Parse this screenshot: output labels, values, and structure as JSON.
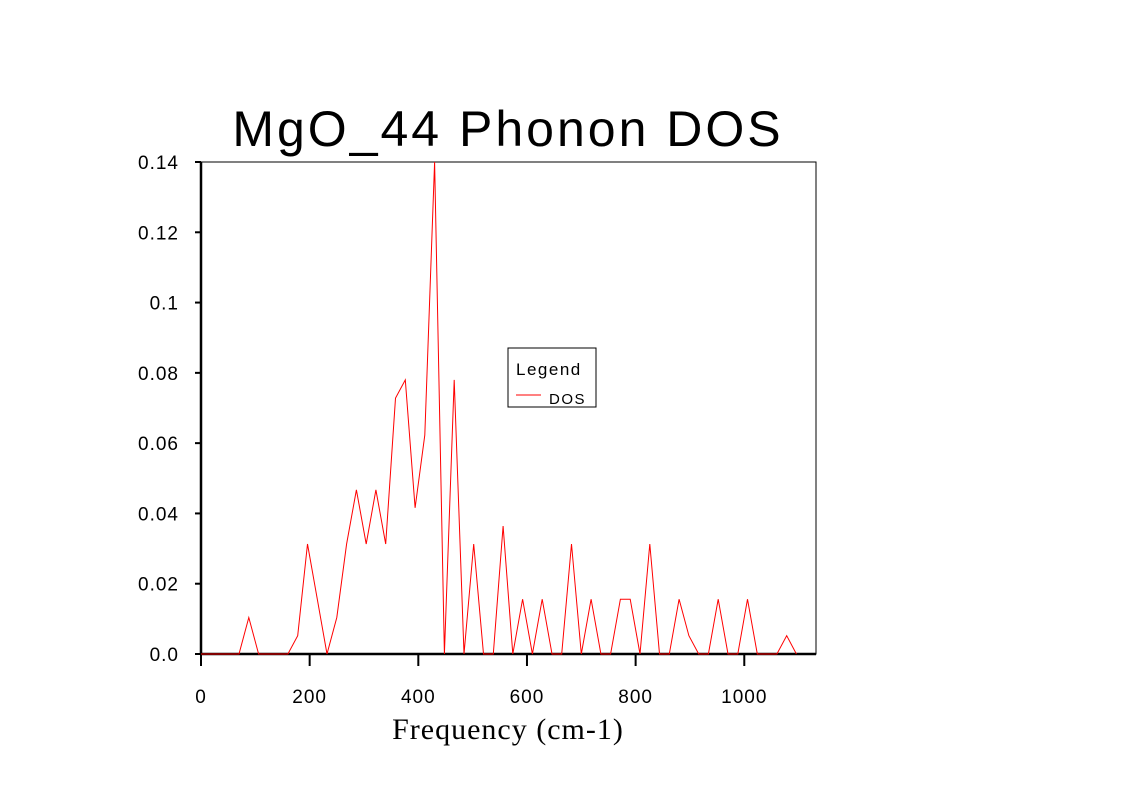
{
  "chart_data": {
    "type": "line",
    "title": "MgO_44 Phonon DOS",
    "xlabel": "Frequency (cm-1)",
    "ylabel": "",
    "xlim": [
      0,
      1132
    ],
    "ylim": [
      0,
      0.14
    ],
    "xticks": [
      0,
      200,
      400,
      600,
      800,
      1000
    ],
    "xtick_labels": [
      "0",
      "200",
      "400",
      "600",
      "800",
      "1000"
    ],
    "yticks": [
      0,
      0.02,
      0.04,
      0.06,
      0.08,
      0.1,
      0.12,
      0.14
    ],
    "ytick_labels": [
      "0.0",
      "0.02",
      "0.04",
      "0.06",
      "0.08",
      "0.1",
      "0.12",
      "0.14"
    ],
    "grid": false,
    "legend": {
      "title": "Legend",
      "placement": "center"
    },
    "series": [
      {
        "name": "DOS",
        "color": "#ff0000",
        "x": [
          0,
          70,
          88,
          106,
          124,
          142,
          160,
          178,
          196,
          214,
          232,
          250,
          268,
          286,
          304,
          322,
          340,
          358,
          376,
          394,
          412,
          430,
          448,
          466,
          484,
          502,
          520,
          538,
          556,
          574,
          592,
          610,
          628,
          646,
          664,
          682,
          700,
          718,
          736,
          754,
          772,
          790,
          808,
          826,
          844,
          862,
          880,
          898,
          916,
          934,
          952,
          970,
          988,
          1006,
          1024,
          1042,
          1060,
          1078,
          1096
        ],
        "y": [
          0,
          0,
          0.0104,
          0,
          0,
          0,
          0,
          0.0052,
          0.0313,
          0.0156,
          0,
          0.0104,
          0.0313,
          0.0467,
          0.0313,
          0.0467,
          0.0313,
          0.0728,
          0.078,
          0.0416,
          0.0623,
          0.14,
          0,
          0.078,
          0,
          0.0313,
          0,
          0,
          0.0364,
          0,
          0.0156,
          0,
          0.0156,
          0,
          0,
          0.0313,
          0,
          0.0156,
          0,
          0,
          0.0156,
          0.0156,
          0,
          0.0313,
          0,
          0,
          0.0156,
          0.0052,
          0,
          0,
          0.0156,
          0,
          0,
          0.0156,
          0,
          0,
          0,
          0.0052,
          0
        ]
      }
    ]
  }
}
